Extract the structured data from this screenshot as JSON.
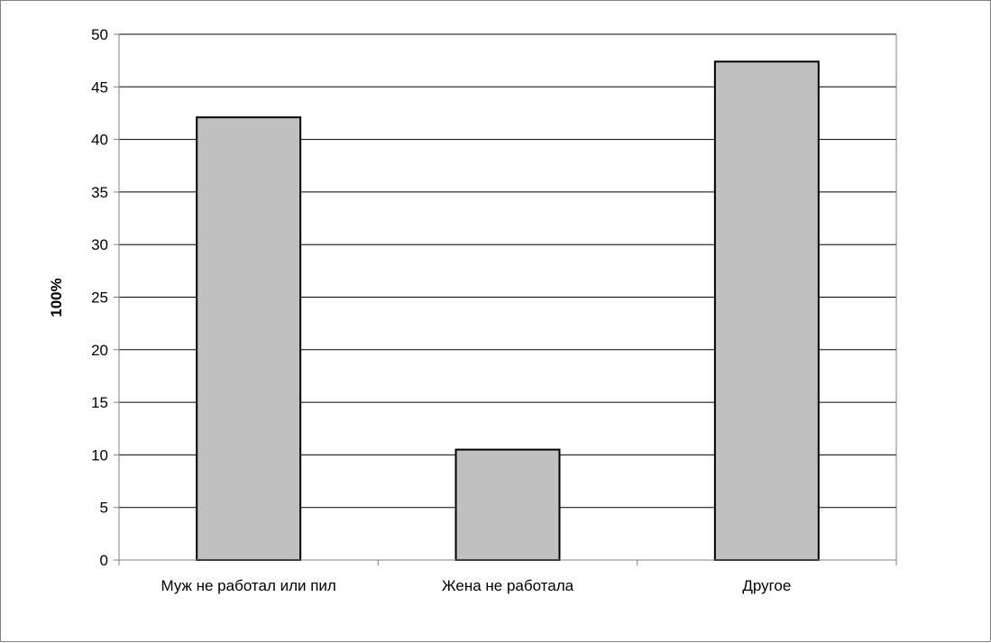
{
  "chart_data": {
    "type": "bar",
    "categories": [
      "Муж не работал или пил",
      "Жена не работала",
      "Другое"
    ],
    "values": [
      42.1,
      10.5,
      47.4
    ],
    "title": "",
    "xlabel": "",
    "ylabel": "100%",
    "ylim": [
      0,
      50
    ],
    "yticks": [
      0,
      5,
      10,
      15,
      20,
      25,
      30,
      35,
      40,
      45,
      50
    ],
    "grid": true,
    "legend": "none",
    "colors": {
      "bar_fill": "#c0c0c0",
      "bar_stroke": "#000000",
      "grid": "#000000",
      "axis": "#808080"
    }
  }
}
